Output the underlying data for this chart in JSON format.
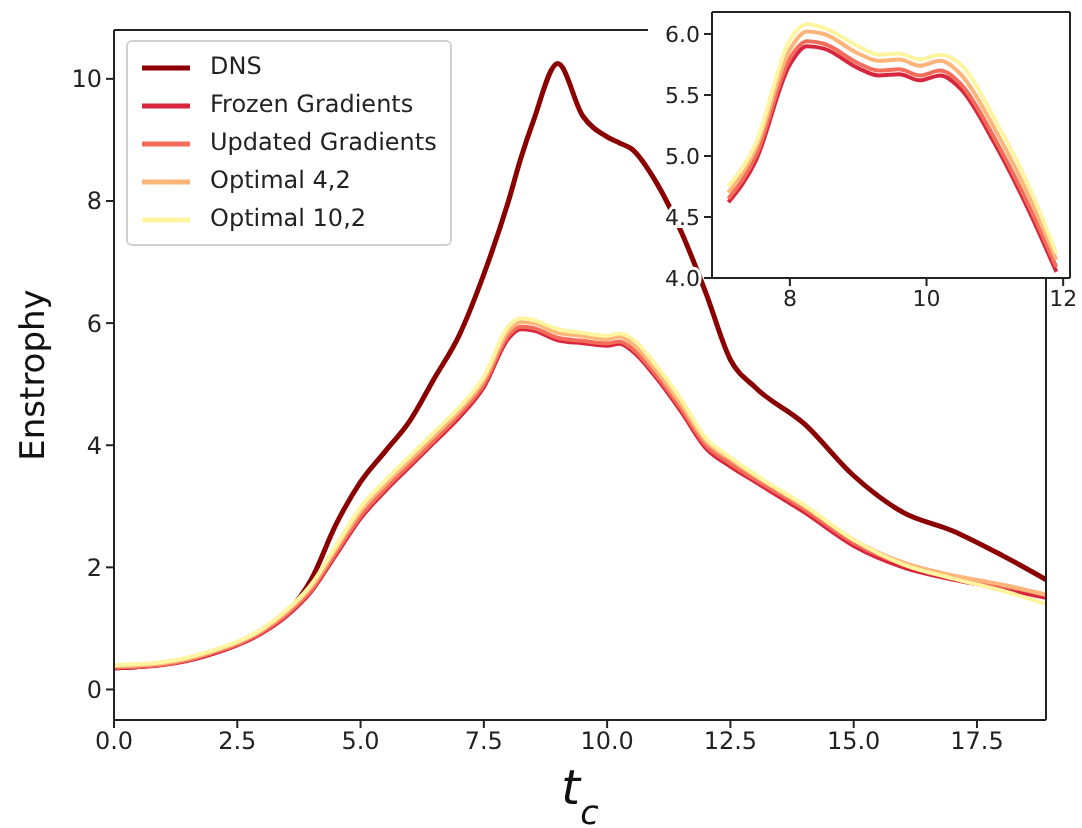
{
  "chart_data": [
    {
      "type": "line",
      "xlabel": "t$_{c}$",
      "ylabel": "Enstrophy",
      "xlim": [
        0,
        18.9
      ],
      "ylim": [
        -0.5,
        10.8
      ],
      "xticks": [
        {
          "value": 0,
          "label": "0.0"
        },
        {
          "value": 2.5,
          "label": "2.5"
        },
        {
          "value": 5,
          "label": "5.0"
        },
        {
          "value": 7.5,
          "label": "7.5"
        },
        {
          "value": 10,
          "label": "10.0"
        },
        {
          "value": 12.5,
          "label": "12.5"
        },
        {
          "value": 15,
          "label": "15.0"
        },
        {
          "value": 17.5,
          "label": "17.5"
        }
      ],
      "yticks": [
        0,
        2,
        4,
        6,
        8,
        10
      ],
      "grid": false,
      "legend": "top left",
      "marker": "none",
      "line_style": "solid",
      "x": [
        0,
        1,
        2,
        3,
        3.5,
        4,
        4.5,
        5,
        5.5,
        6,
        6.5,
        7,
        7.5,
        8,
        8.25,
        8.5,
        9,
        9.5,
        10,
        10.25,
        10.5,
        11,
        11.5,
        12,
        12.5,
        13,
        14,
        15,
        16,
        17,
        18,
        18.9
      ],
      "series": [
        {
          "name": "DNS",
          "color": "#8b0000",
          "values": [
            0.35,
            0.42,
            0.6,
            0.95,
            1.25,
            1.8,
            2.7,
            3.4,
            3.9,
            4.4,
            5.1,
            5.8,
            6.8,
            8.0,
            8.7,
            9.3,
            10.25,
            9.4,
            9.05,
            8.95,
            8.85,
            8.3,
            7.5,
            6.5,
            5.4,
            4.95,
            4.35,
            3.5,
            2.9,
            2.6,
            2.2,
            1.8
          ]
        },
        {
          "name": "Frozen Gradients",
          "color": "#d7263d",
          "values": [
            0.35,
            0.4,
            0.58,
            0.92,
            1.2,
            1.6,
            2.2,
            2.8,
            3.25,
            3.65,
            4.05,
            4.45,
            4.95,
            5.75,
            5.9,
            5.88,
            5.72,
            5.67,
            5.63,
            5.66,
            5.55,
            5.1,
            4.55,
            3.95,
            3.65,
            3.4,
            2.9,
            2.35,
            2.0,
            1.8,
            1.65,
            1.5
          ]
        },
        {
          "name": "Updated Gradients",
          "color": "#f46d5a",
          "values": [
            0.36,
            0.41,
            0.6,
            0.94,
            1.23,
            1.63,
            2.24,
            2.84,
            3.29,
            3.69,
            4.09,
            4.5,
            5.0,
            5.8,
            5.94,
            5.92,
            5.76,
            5.71,
            5.67,
            5.7,
            5.59,
            5.14,
            4.6,
            4.0,
            3.7,
            3.44,
            2.95,
            2.4,
            2.05,
            1.85,
            1.7,
            1.55
          ]
        },
        {
          "name": "Optimal 4,2",
          "color": "#fdb57a",
          "values": [
            0.38,
            0.43,
            0.62,
            0.97,
            1.27,
            1.68,
            2.3,
            2.92,
            3.36,
            3.76,
            4.16,
            4.56,
            5.07,
            5.87,
            6.02,
            6.0,
            5.84,
            5.79,
            5.74,
            5.78,
            5.67,
            5.22,
            4.67,
            4.07,
            3.77,
            3.5,
            3.0,
            2.45,
            2.08,
            1.87,
            1.72,
            1.55
          ]
        },
        {
          "name": "Optimal 10,2",
          "color": "#fff5a0",
          "values": [
            0.4,
            0.45,
            0.64,
            0.99,
            1.3,
            1.72,
            2.35,
            2.98,
            3.42,
            3.82,
            4.22,
            4.62,
            5.12,
            5.95,
            6.08,
            6.05,
            5.9,
            5.84,
            5.79,
            5.83,
            5.75,
            5.3,
            4.75,
            4.12,
            3.8,
            3.52,
            3.02,
            2.45,
            2.05,
            1.82,
            1.62,
            1.4
          ]
        }
      ]
    },
    {
      "type": "line",
      "xlim": [
        6.86,
        12.1
      ],
      "ylim": [
        4.0,
        6.18
      ],
      "xticks": [
        8,
        10,
        12
      ],
      "yticks": [
        {
          "value": 4,
          "label": "4.0"
        },
        {
          "value": 4.5,
          "label": "4.5"
        },
        {
          "value": 5,
          "label": "5.0"
        },
        {
          "value": 5.5,
          "label": "5.5"
        },
        {
          "value": 6,
          "label": "6.0"
        }
      ],
      "grid": false,
      "marker": "none",
      "line_style": "solid",
      "x": [
        7.1,
        7.5,
        8,
        8.25,
        8.5,
        9,
        9.3,
        9.6,
        9.9,
        10.2,
        10.5,
        11,
        11.5,
        11.9
      ],
      "series": [
        {
          "color": "#d7263d",
          "values": [
            4.62,
            4.96,
            5.75,
            5.9,
            5.88,
            5.72,
            5.66,
            5.67,
            5.62,
            5.66,
            5.55,
            5.1,
            4.55,
            4.05
          ]
        },
        {
          "color": "#f46d5a",
          "values": [
            4.65,
            5.0,
            5.8,
            5.94,
            5.92,
            5.76,
            5.7,
            5.71,
            5.66,
            5.7,
            5.59,
            5.14,
            4.59,
            4.09
          ]
        },
        {
          "color": "#fdb57a",
          "values": [
            4.7,
            5.06,
            5.87,
            6.02,
            6.0,
            5.84,
            5.78,
            5.79,
            5.74,
            5.78,
            5.67,
            5.22,
            4.67,
            4.15
          ]
        },
        {
          "color": "#fff5a0",
          "values": [
            4.75,
            5.1,
            5.95,
            6.08,
            6.05,
            5.9,
            5.83,
            5.84,
            5.79,
            5.83,
            5.75,
            5.3,
            4.75,
            4.2
          ]
        }
      ]
    }
  ]
}
